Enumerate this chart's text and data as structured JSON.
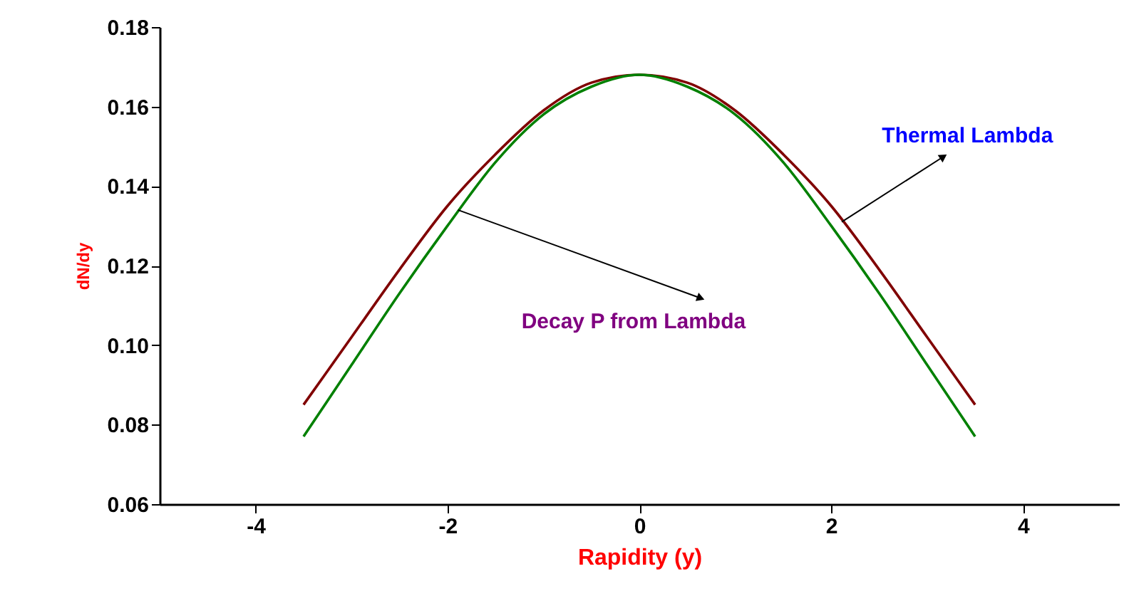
{
  "chart_data": {
    "type": "line",
    "xlabel": "Rapidity (y)",
    "ylabel": "dN/dy",
    "x": [
      -3.5,
      -3,
      -2.5,
      -2,
      -1.5,
      -1,
      -0.5,
      0,
      0.5,
      1,
      1.5,
      2,
      2.5,
      3,
      3.5
    ],
    "series": [
      {
        "color": "#800000",
        "values": [
          0.085,
          0.102,
          0.119,
          0.135,
          0.148,
          0.159,
          0.166,
          0.168,
          0.166,
          0.159,
          0.148,
          0.135,
          0.119,
          0.102,
          0.085
        ]
      },
      {
        "color": "#008000",
        "values": [
          0.077,
          0.095,
          0.113,
          0.13,
          0.146,
          0.158,
          0.165,
          0.168,
          0.165,
          0.158,
          0.146,
          0.13,
          0.113,
          0.095,
          0.077
        ]
      }
    ],
    "xlim": [
      -5,
      5
    ],
    "xticks": [
      -4,
      -2,
      0,
      2,
      4
    ],
    "ylim": [
      0.06,
      0.18
    ],
    "yticks": [
      0.06,
      0.08,
      {
        "value": 0.1,
        "label": "0.10"
      },
      0.12,
      0.14,
      0.16,
      0.18
    ],
    "grid": false,
    "marker": "none",
    "line_style": "solid",
    "annotations": [
      {
        "text": "Thermal Lambda",
        "x": 2.11,
        "y": 0.131
      },
      {
        "text": "Decay P from Lambda",
        "x": -1.89,
        "y": 0.134
      }
    ]
  }
}
